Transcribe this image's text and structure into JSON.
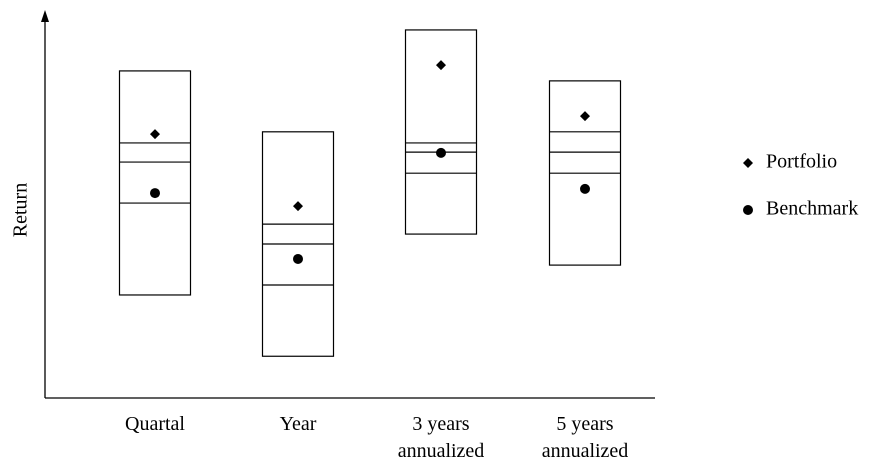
{
  "chart_data": {
    "type": "box",
    "y_label": "Return",
    "categories": [
      "Quartal",
      "Year",
      "3 years annualized",
      "5 years annualized"
    ],
    "boxes": [
      {
        "high": 85.4,
        "upper": 66.6,
        "middle": 61.6,
        "lower": 50.9,
        "low": 26.9
      },
      {
        "high": 69.5,
        "upper": 45.4,
        "middle": 40.2,
        "lower": 29.5,
        "low": 10.9
      },
      {
        "high": 96.1,
        "upper": 66.6,
        "middle": 64.2,
        "lower": 58.7,
        "low": 42.8
      },
      {
        "high": 82.8,
        "upper": 69.5,
        "middle": 64.2,
        "lower": 58.7,
        "low": 34.7
      }
    ],
    "series": [
      {
        "name": "Portfolio",
        "marker": "diamond",
        "color": "#000000",
        "values": [
          68.9,
          50.1,
          86.9,
          73.6
        ]
      },
      {
        "name": "Benchmark",
        "marker": "circle",
        "color": "#000000",
        "values": [
          53.5,
          36.3,
          64.0,
          54.6
        ]
      }
    ],
    "ylim": [
      0,
      100
    ],
    "legend": "right"
  }
}
